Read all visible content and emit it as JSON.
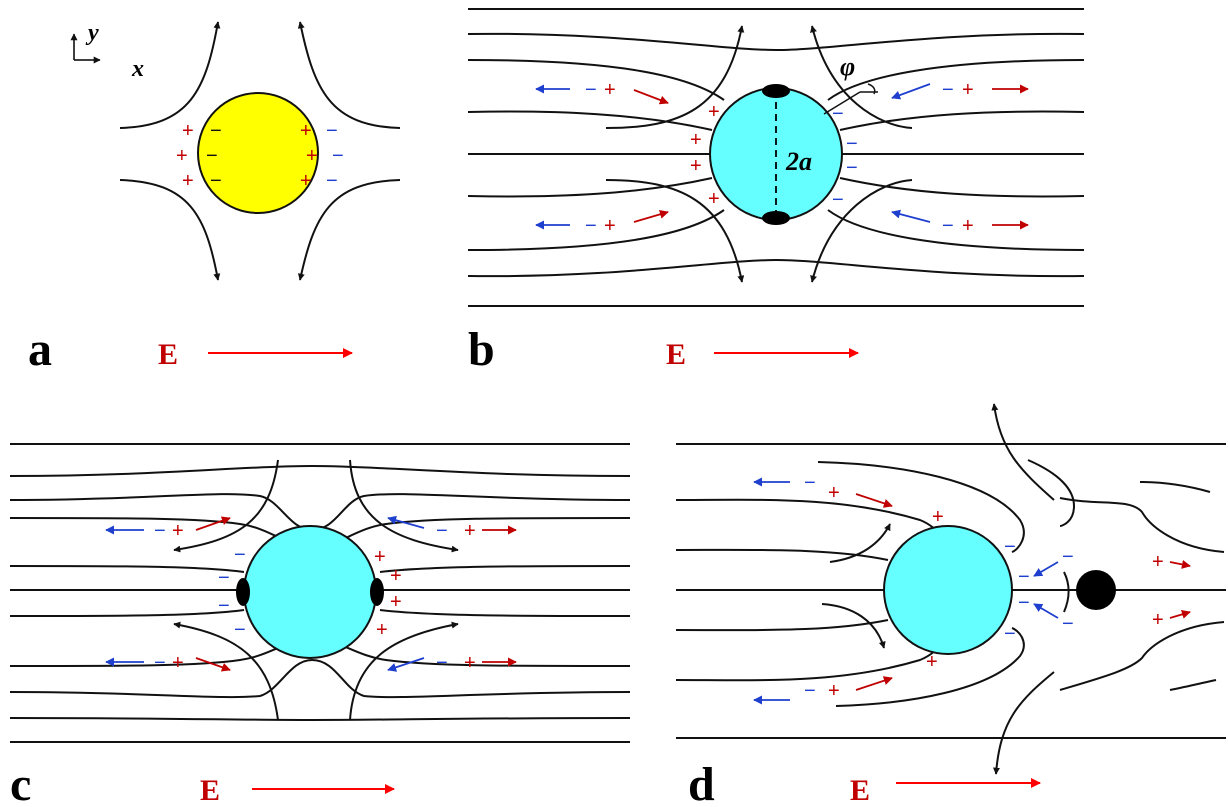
{
  "axes": {
    "x": "x",
    "y": "y"
  },
  "symbols": {
    "plus": "+",
    "minus": "−"
  },
  "panels": [
    {
      "label": "a",
      "field_label": "E"
    },
    {
      "label": "b",
      "field_label": "E",
      "angle_label": "φ",
      "diameter_label": "2a"
    },
    {
      "label": "c",
      "field_label": "E"
    },
    {
      "label": "d",
      "field_label": "E"
    }
  ],
  "colors": {
    "positive": "#c00000",
    "negative": "#1f3fcf",
    "field": "#ff0000",
    "particle_a": "#ffff00",
    "particle_bcd": "#66ffff",
    "streamline": "#111111"
  }
}
